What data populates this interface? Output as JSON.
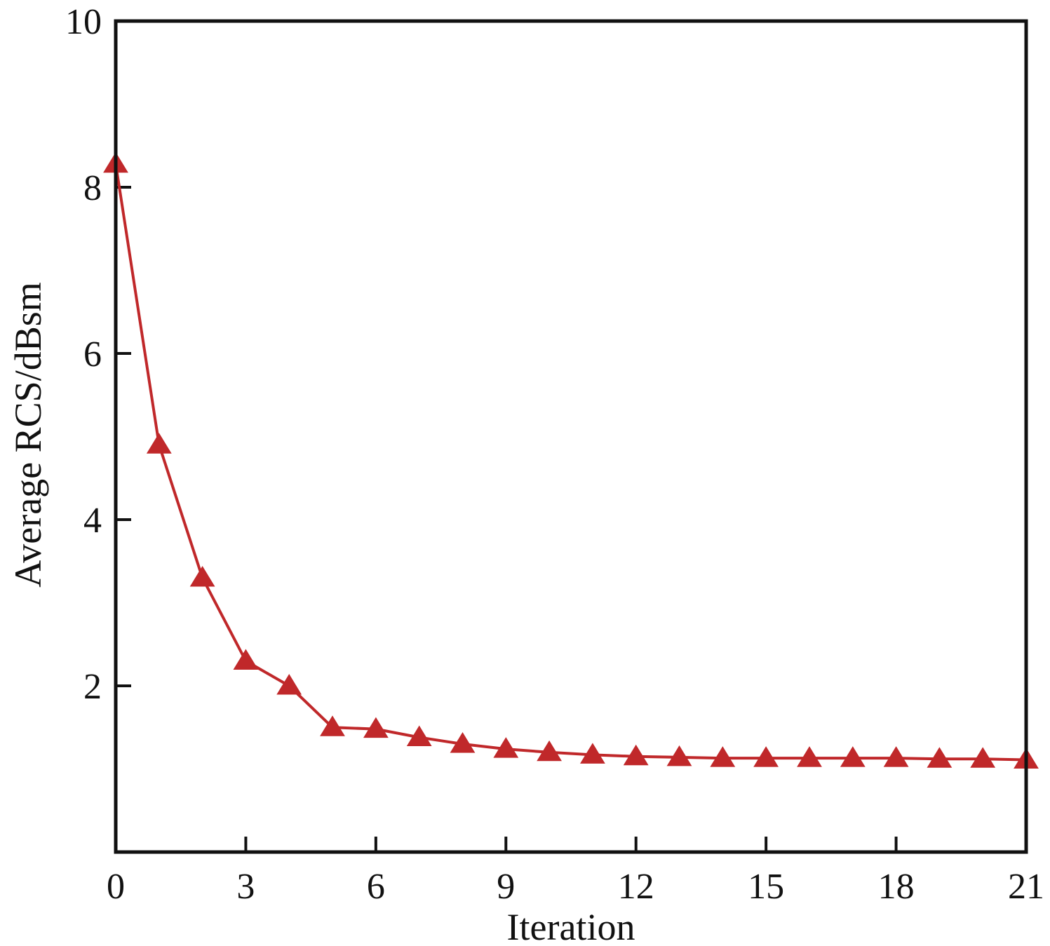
{
  "chart_data": {
    "type": "line",
    "title": "",
    "xlabel": "Iteration",
    "ylabel": "Average RCS/dBsm",
    "xlim": [
      0,
      21
    ],
    "ylim": [
      0,
      10
    ],
    "x_ticks": [
      0,
      3,
      6,
      9,
      12,
      15,
      18,
      21
    ],
    "y_ticks": [
      2,
      4,
      6,
      8,
      10
    ],
    "x_tick_labels": [
      "0",
      "3",
      "6",
      "9",
      "12",
      "15",
      "18",
      "21"
    ],
    "y_tick_labels": [
      "2",
      "4",
      "6",
      "8",
      "10"
    ],
    "grid": false,
    "legend": "none",
    "series": [
      {
        "marker": "triangle-up",
        "color": "#c0282a",
        "x": [
          0,
          1,
          2,
          3,
          4,
          5,
          6,
          7,
          8,
          9,
          10,
          11,
          12,
          13,
          14,
          15,
          16,
          17,
          18,
          19,
          20,
          21
        ],
        "y": [
          8.28,
          4.9,
          3.3,
          2.3,
          2.0,
          1.5,
          1.48,
          1.38,
          1.3,
          1.24,
          1.2,
          1.17,
          1.15,
          1.14,
          1.13,
          1.13,
          1.13,
          1.13,
          1.13,
          1.12,
          1.12,
          1.11
        ]
      }
    ]
  }
}
